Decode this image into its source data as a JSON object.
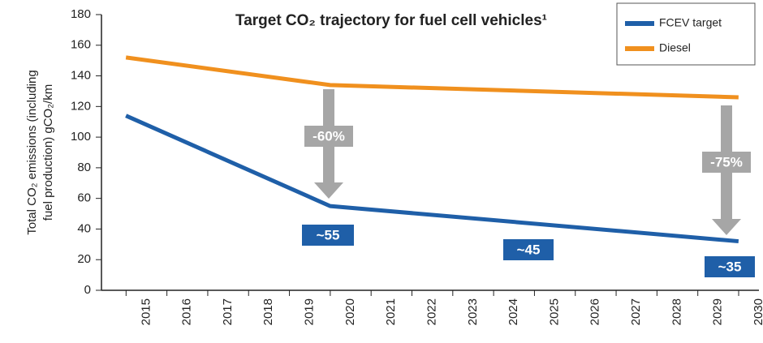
{
  "chart_data": {
    "type": "line",
    "title": "Target CO₂ trajectory for fuel cell vehicles¹",
    "ylabel": [
      "Total CO₂ emissions (including",
      "fuel production) gCO₂/km"
    ],
    "x": [
      2014.5,
      2019.5,
      2029.5
    ],
    "series": [
      {
        "name": "FCEV target",
        "color": "#1f5fa8",
        "values": [
          114,
          55,
          32
        ]
      },
      {
        "name": "Diesel",
        "color": "#f0901e",
        "values": [
          152,
          134,
          126
        ]
      }
    ],
    "xlim": [
      2014,
      2030
    ],
    "xticks": [
      2015,
      2016,
      2017,
      2018,
      2019,
      2020,
      2021,
      2022,
      2023,
      2024,
      2025,
      2026,
      2027,
      2028,
      2029,
      2030
    ],
    "ylim": [
      0,
      180
    ],
    "yticks": [
      0,
      20,
      40,
      60,
      80,
      100,
      120,
      140,
      160,
      180
    ],
    "annotations": [
      "-60%",
      "-75%",
      "~55",
      "~45",
      "~35"
    ],
    "legend": "upper right"
  }
}
